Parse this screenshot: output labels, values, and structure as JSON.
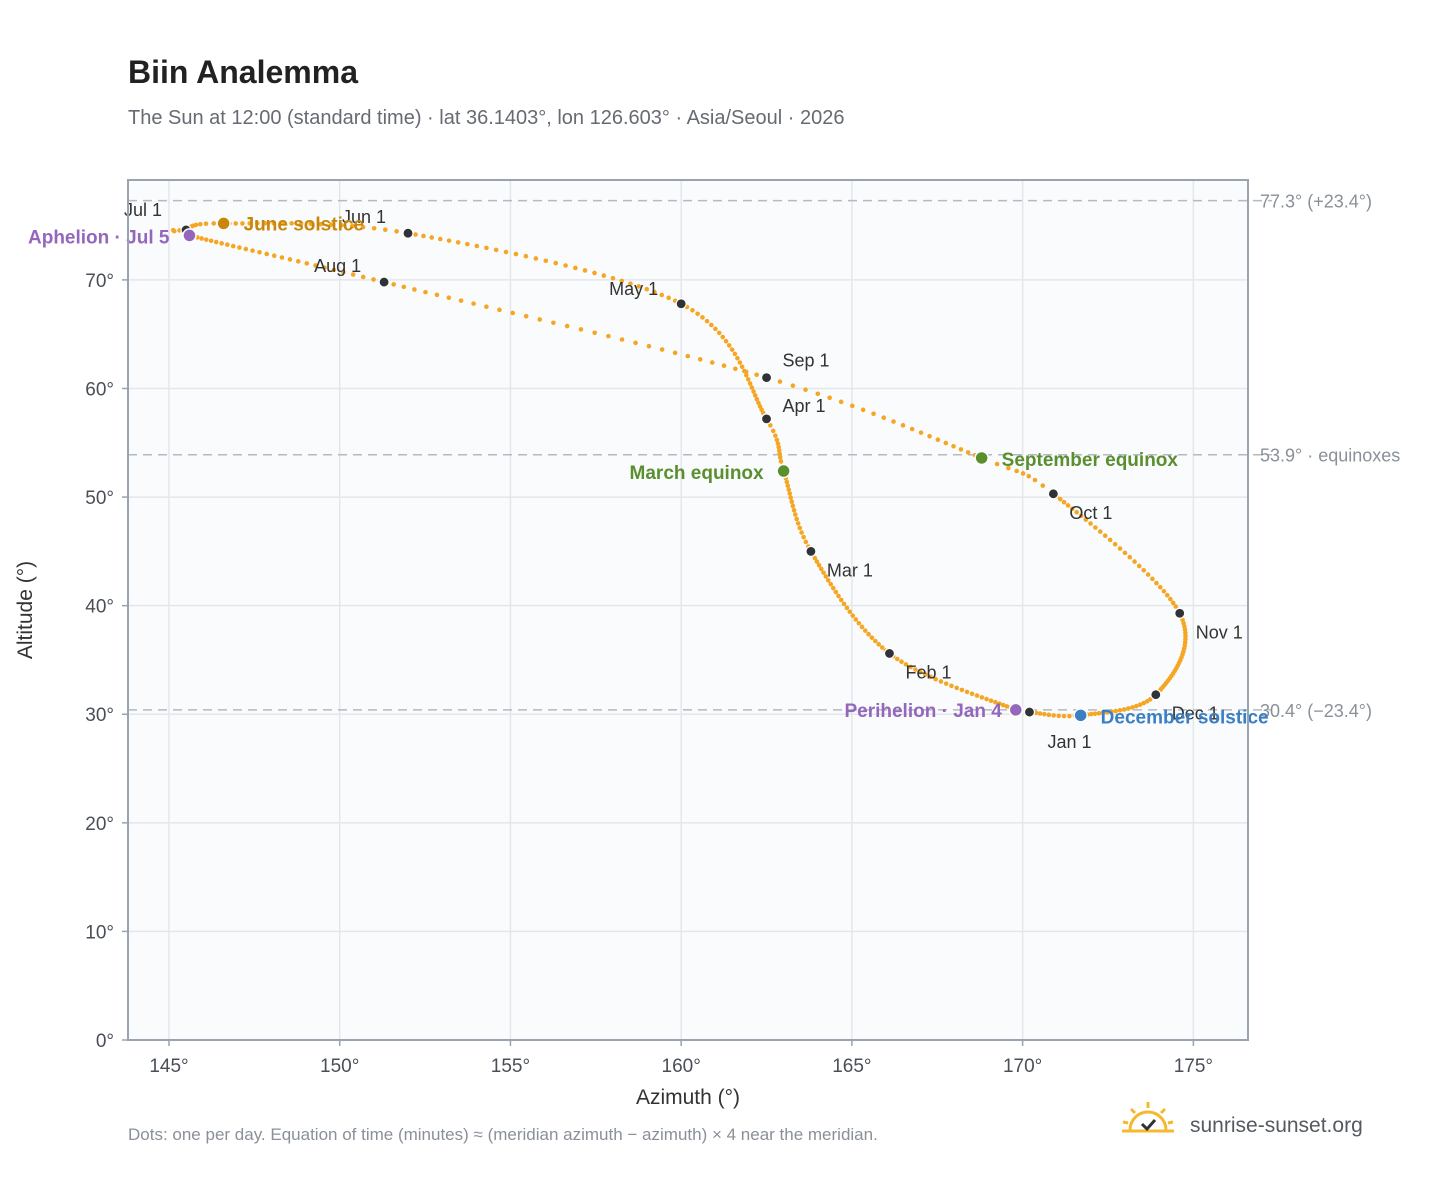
{
  "header": {
    "title": "Biin Analemma",
    "subtitle": "The Sun at 12:00 (standard time) · lat 36.1403°, lon 126.603° · Asia/Seoul · 2026"
  },
  "footer": {
    "note": "Dots: one per day. Equation of time (minutes) ≈ (meridian azimuth − azimuth) × 4 near the meridian.",
    "brand": "sunrise-sunset.org"
  },
  "colors": {
    "curve": "#f5a623",
    "month_dot": "#2f3338",
    "solstice_june": "#c8860a",
    "equinox": "#5a8f2e",
    "december": "#3a7fc4",
    "apsis": "#9467bd",
    "grid": "#e3e7ec",
    "plot_bg": "#fafbfd",
    "frame": "#9aa3b0"
  },
  "chart_data": {
    "type": "scatter",
    "title": "Biin Analemma",
    "xlabel": "Azimuth (°)",
    "ylabel": "Altitude (°)",
    "xlim": [
      143.8,
      176.6
    ],
    "ylim": [
      0,
      79.2
    ],
    "xticks": [
      145,
      150,
      155,
      160,
      165,
      170,
      175
    ],
    "yticks": [
      0,
      10,
      20,
      30,
      40,
      50,
      60,
      70
    ],
    "xtick_labels": [
      "145°",
      "150°",
      "155°",
      "160°",
      "165°",
      "170°",
      "175°"
    ],
    "ytick_labels": [
      "0°",
      "10°",
      "20°",
      "30°",
      "40°",
      "50°",
      "60°",
      "70°"
    ],
    "grid": true,
    "legend": "none",
    "reference_lines": [
      {
        "altitude": 77.3,
        "label": "77.3° (+23.4°)"
      },
      {
        "altitude": 53.9,
        "label": "53.9° · equinoxes"
      },
      {
        "altitude": 30.4,
        "label": "30.4° (−23.4°)"
      }
    ],
    "month_points": [
      {
        "label": "Jan 1",
        "az": 170.2,
        "alt": 30.2
      },
      {
        "label": "Feb 1",
        "az": 166.1,
        "alt": 35.6
      },
      {
        "label": "Mar 1",
        "az": 163.8,
        "alt": 45.0
      },
      {
        "label": "Apr 1",
        "az": 162.5,
        "alt": 57.2
      },
      {
        "label": "May 1",
        "az": 160.0,
        "alt": 67.8
      },
      {
        "label": "Jun 1",
        "az": 152.0,
        "alt": 74.3
      },
      {
        "label": "Jul 1",
        "az": 145.5,
        "alt": 74.6
      },
      {
        "label": "Aug 1",
        "az": 151.3,
        "alt": 69.8
      },
      {
        "label": "Sep 1",
        "az": 162.5,
        "alt": 61.0
      },
      {
        "label": "Oct 1",
        "az": 170.9,
        "alt": 50.3
      },
      {
        "label": "Nov 1",
        "az": 174.6,
        "alt": 39.3
      },
      {
        "label": "Dec 1",
        "az": 173.9,
        "alt": 31.8
      }
    ],
    "events": [
      {
        "label": "Perihelion · Jan 4",
        "az": 169.8,
        "alt": 30.4,
        "kind": "apsis"
      },
      {
        "label": "March equinox",
        "az": 163.0,
        "alt": 52.4,
        "kind": "equinox"
      },
      {
        "label": "June solstice",
        "az": 146.6,
        "alt": 75.2,
        "kind": "solstice_june"
      },
      {
        "label": "Aphelion · Jul 5",
        "az": 145.6,
        "alt": 74.1,
        "kind": "apsis"
      },
      {
        "label": "September equinox",
        "az": 168.8,
        "alt": 53.6,
        "kind": "equinox"
      },
      {
        "label": "December solstice",
        "az": 171.7,
        "alt": 29.9,
        "kind": "december"
      }
    ]
  }
}
